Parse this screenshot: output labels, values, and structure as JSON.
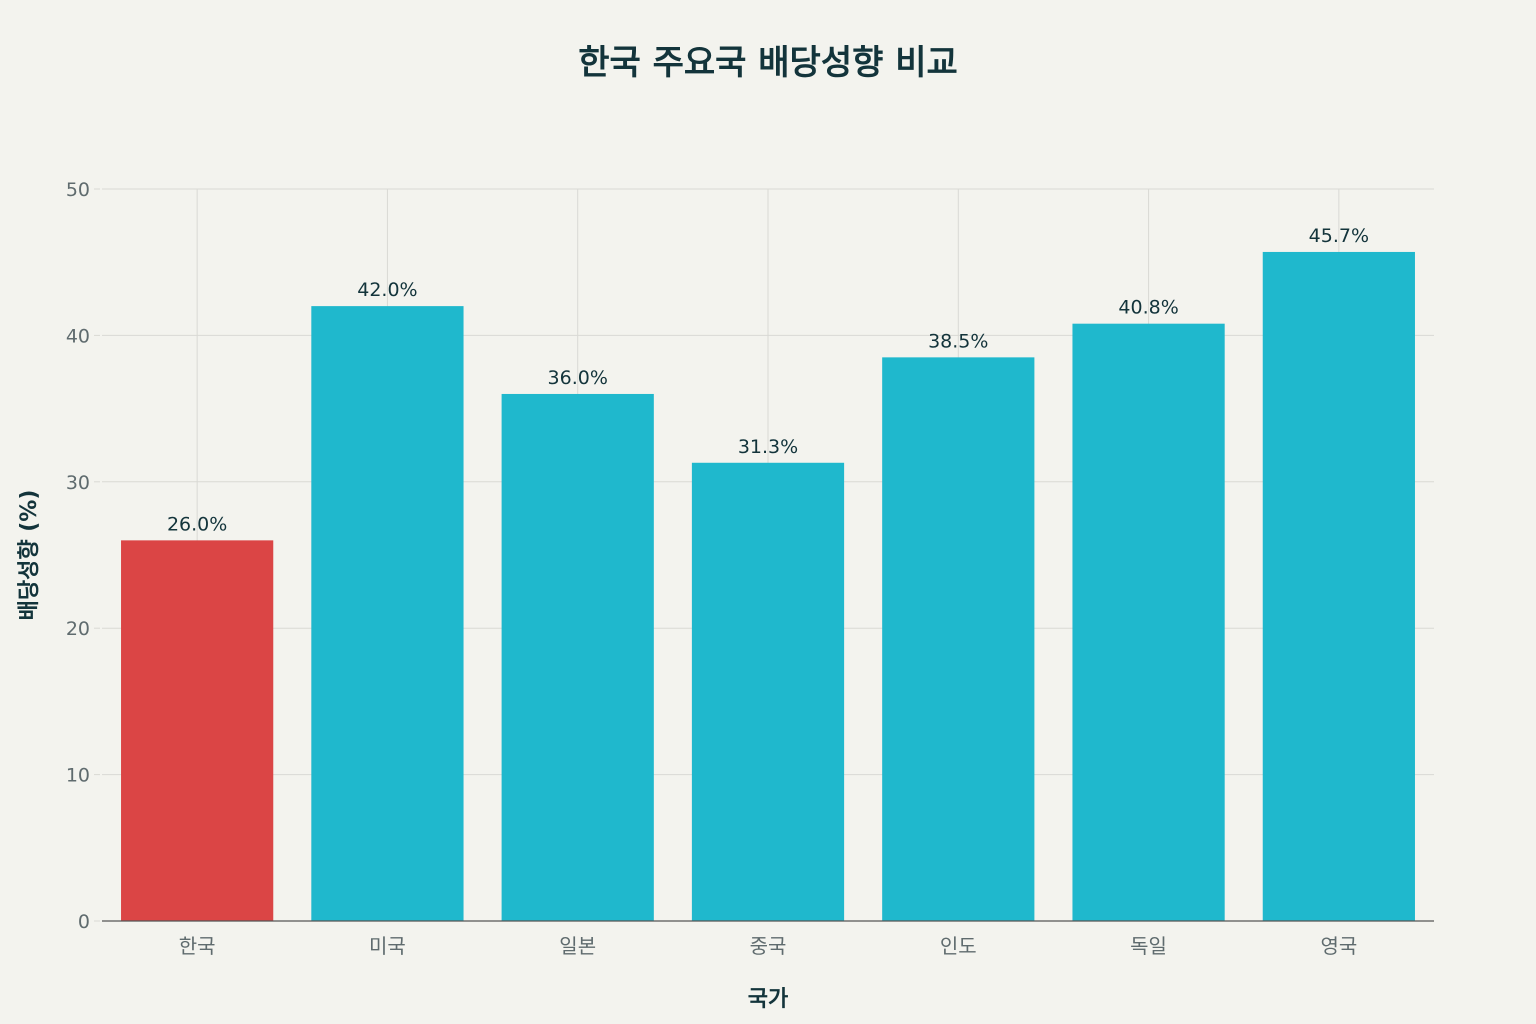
{
  "chart_data": {
    "type": "bar",
    "title": "한국 주요국 배당성향 비교",
    "xlabel": "국가",
    "ylabel": "배당성향 (%)",
    "categories": [
      "한국",
      "미국",
      "일본",
      "중국",
      "인도",
      "독일",
      "영국"
    ],
    "values": [
      26.0,
      42.0,
      36.0,
      31.3,
      38.5,
      40.8,
      45.7
    ],
    "data_labels": [
      "26.0%",
      "42.0%",
      "36.0%",
      "31.3%",
      "38.5%",
      "40.8%",
      "45.7%"
    ],
    "ylim": [
      0,
      50
    ],
    "yticks": [
      0,
      10,
      20,
      30,
      40,
      50
    ],
    "grid": true,
    "legend": "none",
    "colors": {
      "highlight": "#db4545",
      "default": "#1fb8cd"
    },
    "highlight_category": "한국"
  }
}
